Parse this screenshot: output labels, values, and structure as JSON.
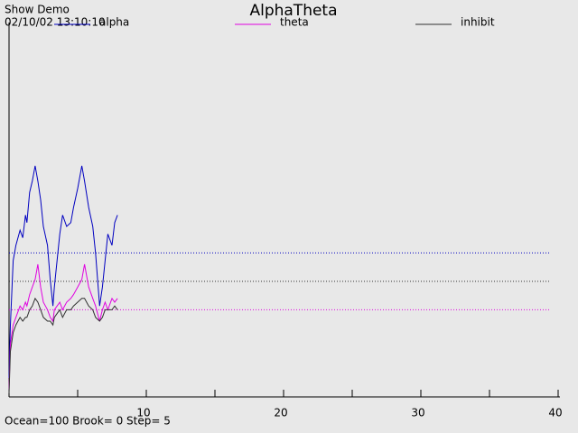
{
  "chart_data": {
    "type": "line",
    "title": "AlphaTheta",
    "header": "Show Demo",
    "timestamp": "02/10/02 13:10:10",
    "footer": "Ocean=100 Brook=  0 Step= 5",
    "xlim": [
      0,
      40
    ],
    "xticks": [
      10,
      20,
      30,
      40
    ],
    "minor_xticks": [
      5,
      15,
      25,
      35
    ],
    "ylim": [
      0,
      100
    ],
    "x": [
      0,
      0.1,
      0.3,
      0.5,
      0.8,
      1.0,
      1.2,
      1.3,
      1.5,
      1.7,
      1.9,
      2.1,
      2.3,
      2.5,
      2.8,
      3.0,
      3.2,
      3.3,
      3.5,
      3.7,
      3.9,
      4.2,
      4.5,
      4.7,
      5.0,
      5.3,
      5.5,
      5.8,
      6.1,
      6.3,
      6.6,
      6.8,
      7.0,
      7.2,
      7.5,
      7.7,
      7.9
    ],
    "series": [
      {
        "name": "alpha",
        "color": "#0000c0",
        "values": [
          5,
          19,
          36,
          40,
          44,
          42,
          48,
          46,
          54,
          57,
          61,
          57,
          52,
          45,
          40,
          31,
          24,
          29,
          36,
          43,
          48,
          45,
          46,
          50,
          55,
          61,
          57,
          50,
          45,
          38,
          24,
          29,
          36,
          43,
          40,
          46,
          48
        ]
      },
      {
        "name": "theta",
        "color": "#e000e0",
        "values": [
          2,
          14,
          19,
          21,
          24,
          23,
          25,
          24,
          27,
          29,
          31,
          35,
          29,
          25,
          23,
          21,
          20,
          23,
          24,
          25,
          23,
          25,
          26,
          27,
          29,
          31,
          35,
          29,
          26,
          24,
          20,
          23,
          25,
          23,
          26,
          25,
          26
        ]
      },
      {
        "name": "inhibit",
        "color": "#303030",
        "values": [
          1,
          12,
          17,
          19,
          21,
          20,
          21,
          21,
          23,
          24,
          26,
          25,
          23,
          21,
          20,
          20,
          19,
          21,
          22,
          23,
          21,
          23,
          23,
          24,
          25,
          26,
          26,
          24,
          23,
          21,
          20,
          21,
          23,
          23,
          23,
          24,
          23
        ]
      }
    ],
    "reference_lines": [
      {
        "value": 38,
        "color": "#0000c0"
      },
      {
        "value": 30.5,
        "color": "#303030"
      },
      {
        "value": 23,
        "color": "#e000e0"
      }
    ]
  }
}
